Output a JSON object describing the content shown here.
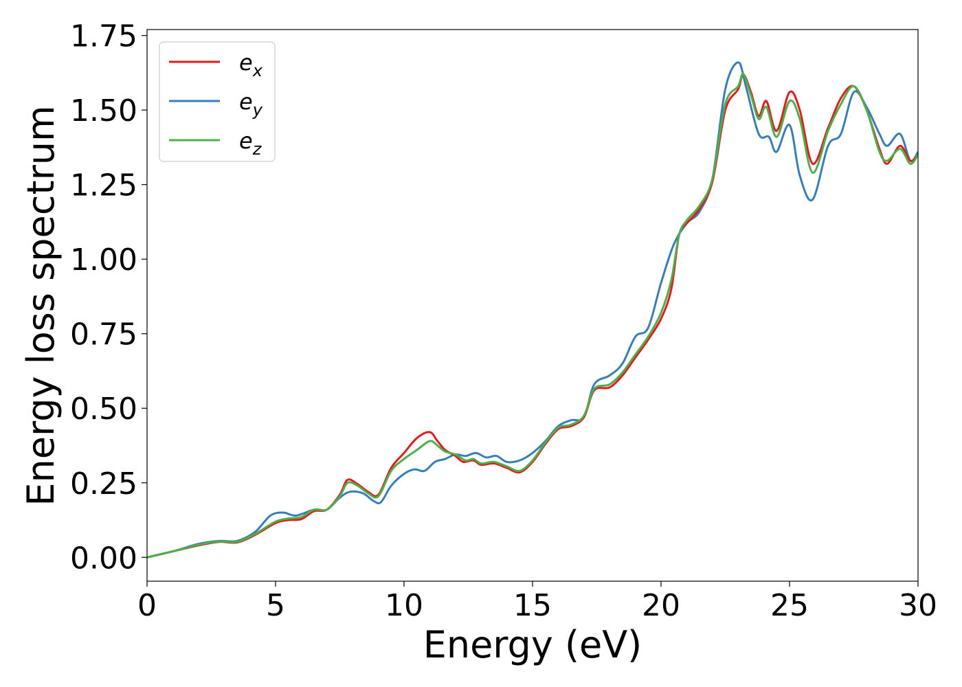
{
  "chart_data": {
    "type": "line",
    "xlabel": "Energy (eV)",
    "ylabel": "Energy loss spectrum",
    "xlim": [
      0,
      30
    ],
    "ylim": [
      -0.08,
      1.77
    ],
    "xticks": [
      0,
      5,
      10,
      15,
      20,
      25,
      30
    ],
    "xtick_labels": [
      "0",
      "5",
      "10",
      "15",
      "20",
      "25",
      "30"
    ],
    "yticks": [
      0.0,
      0.25,
      0.5,
      0.75,
      1.0,
      1.25,
      1.5,
      1.75
    ],
    "ytick_labels": [
      "0.00",
      "0.25",
      "0.50",
      "0.75",
      "1.00",
      "1.25",
      "1.50",
      "1.75"
    ],
    "grid": false,
    "legend_position": "top-left",
    "series": [
      {
        "name": "e",
        "subscript": "x",
        "color": "#e41a1c",
        "points": [
          [
            0,
            0
          ],
          [
            1,
            0.02
          ],
          [
            2,
            0.04
          ],
          [
            2.8,
            0.052
          ],
          [
            3.5,
            0.05
          ],
          [
            4.2,
            0.075
          ],
          [
            5,
            0.115
          ],
          [
            5.5,
            0.125
          ],
          [
            6,
            0.128
          ],
          [
            6.5,
            0.155
          ],
          [
            7,
            0.16
          ],
          [
            7.5,
            0.21
          ],
          [
            7.8,
            0.26
          ],
          [
            8.2,
            0.245
          ],
          [
            8.6,
            0.22
          ],
          [
            9,
            0.21
          ],
          [
            9.5,
            0.3
          ],
          [
            10,
            0.35
          ],
          [
            10.5,
            0.4
          ],
          [
            11,
            0.42
          ],
          [
            11.3,
            0.39
          ],
          [
            11.6,
            0.36
          ],
          [
            12,
            0.34
          ],
          [
            12.3,
            0.32
          ],
          [
            12.7,
            0.325
          ],
          [
            13,
            0.31
          ],
          [
            13.5,
            0.315
          ],
          [
            14,
            0.3
          ],
          [
            14.5,
            0.285
          ],
          [
            15,
            0.32
          ],
          [
            15.5,
            0.38
          ],
          [
            16,
            0.43
          ],
          [
            16.5,
            0.44
          ],
          [
            17,
            0.47
          ],
          [
            17.4,
            0.56
          ],
          [
            18,
            0.57
          ],
          [
            18.5,
            0.61
          ],
          [
            19,
            0.67
          ],
          [
            19.5,
            0.73
          ],
          [
            20,
            0.8
          ],
          [
            20.4,
            0.9
          ],
          [
            20.7,
            1.08
          ],
          [
            21,
            1.12
          ],
          [
            21.5,
            1.17
          ],
          [
            22,
            1.26
          ],
          [
            22.5,
            1.5
          ],
          [
            23,
            1.57
          ],
          [
            23.2,
            1.62
          ],
          [
            23.5,
            1.56
          ],
          [
            23.8,
            1.48
          ],
          [
            24.1,
            1.53
          ],
          [
            24.5,
            1.43
          ],
          [
            25,
            1.56
          ],
          [
            25.4,
            1.5
          ],
          [
            25.9,
            1.32
          ],
          [
            26.5,
            1.44
          ],
          [
            27,
            1.54
          ],
          [
            27.5,
            1.58
          ],
          [
            28,
            1.5
          ],
          [
            28.5,
            1.37
          ],
          [
            28.8,
            1.32
          ],
          [
            29.3,
            1.38
          ],
          [
            29.7,
            1.33
          ],
          [
            30,
            1.35
          ]
        ]
      },
      {
        "name": "e",
        "subscript": "y",
        "color": "#377eb8",
        "points": [
          [
            0,
            0
          ],
          [
            1,
            0.02
          ],
          [
            2,
            0.045
          ],
          [
            2.8,
            0.055
          ],
          [
            3.5,
            0.055
          ],
          [
            4.2,
            0.085
          ],
          [
            4.8,
            0.14
          ],
          [
            5.3,
            0.15
          ],
          [
            5.8,
            0.14
          ],
          [
            6.5,
            0.16
          ],
          [
            7,
            0.16
          ],
          [
            7.5,
            0.2
          ],
          [
            7.9,
            0.22
          ],
          [
            8.4,
            0.215
          ],
          [
            8.8,
            0.19
          ],
          [
            9.1,
            0.185
          ],
          [
            9.5,
            0.24
          ],
          [
            10,
            0.28
          ],
          [
            10.4,
            0.295
          ],
          [
            10.8,
            0.29
          ],
          [
            11.2,
            0.32
          ],
          [
            11.6,
            0.33
          ],
          [
            12,
            0.345
          ],
          [
            12.4,
            0.34
          ],
          [
            12.8,
            0.35
          ],
          [
            13.2,
            0.335
          ],
          [
            13.6,
            0.34
          ],
          [
            14,
            0.32
          ],
          [
            14.5,
            0.325
          ],
          [
            15,
            0.35
          ],
          [
            15.5,
            0.39
          ],
          [
            16,
            0.44
          ],
          [
            16.5,
            0.46
          ],
          [
            17,
            0.47
          ],
          [
            17.4,
            0.58
          ],
          [
            18,
            0.61
          ],
          [
            18.5,
            0.65
          ],
          [
            19,
            0.74
          ],
          [
            19.5,
            0.77
          ],
          [
            20,
            0.92
          ],
          [
            20.5,
            1.05
          ],
          [
            21,
            1.12
          ],
          [
            21.5,
            1.16
          ],
          [
            22,
            1.27
          ],
          [
            22.5,
            1.57
          ],
          [
            23,
            1.66
          ],
          [
            23.3,
            1.58
          ],
          [
            23.8,
            1.42
          ],
          [
            24.2,
            1.41
          ],
          [
            24.5,
            1.36
          ],
          [
            25,
            1.45
          ],
          [
            25.4,
            1.28
          ],
          [
            25.9,
            1.2
          ],
          [
            26.5,
            1.38
          ],
          [
            27,
            1.42
          ],
          [
            27.5,
            1.56
          ],
          [
            28,
            1.51
          ],
          [
            28.5,
            1.42
          ],
          [
            28.8,
            1.38
          ],
          [
            29.3,
            1.42
          ],
          [
            29.7,
            1.33
          ],
          [
            30,
            1.36
          ]
        ]
      },
      {
        "name": "e",
        "subscript": "z",
        "color": "#4daf4a",
        "points": [
          [
            0,
            0
          ],
          [
            1,
            0.02
          ],
          [
            2,
            0.042
          ],
          [
            2.8,
            0.053
          ],
          [
            3.5,
            0.052
          ],
          [
            4.2,
            0.078
          ],
          [
            5,
            0.12
          ],
          [
            5.5,
            0.13
          ],
          [
            6,
            0.135
          ],
          [
            6.5,
            0.16
          ],
          [
            7,
            0.16
          ],
          [
            7.5,
            0.205
          ],
          [
            7.8,
            0.25
          ],
          [
            8.2,
            0.24
          ],
          [
            8.6,
            0.215
          ],
          [
            9,
            0.205
          ],
          [
            9.5,
            0.29
          ],
          [
            10,
            0.33
          ],
          [
            10.5,
            0.36
          ],
          [
            11,
            0.39
          ],
          [
            11.3,
            0.375
          ],
          [
            11.6,
            0.355
          ],
          [
            12,
            0.345
          ],
          [
            12.4,
            0.325
          ],
          [
            12.7,
            0.33
          ],
          [
            13,
            0.315
          ],
          [
            13.5,
            0.32
          ],
          [
            14,
            0.305
          ],
          [
            14.5,
            0.29
          ],
          [
            15,
            0.325
          ],
          [
            15.5,
            0.385
          ],
          [
            16,
            0.435
          ],
          [
            16.5,
            0.445
          ],
          [
            17,
            0.475
          ],
          [
            17.4,
            0.565
          ],
          [
            18,
            0.58
          ],
          [
            18.5,
            0.62
          ],
          [
            19,
            0.68
          ],
          [
            19.5,
            0.74
          ],
          [
            20,
            0.82
          ],
          [
            20.4,
            0.93
          ],
          [
            20.7,
            1.08
          ],
          [
            21,
            1.13
          ],
          [
            21.5,
            1.18
          ],
          [
            22,
            1.27
          ],
          [
            22.5,
            1.52
          ],
          [
            23,
            1.58
          ],
          [
            23.2,
            1.62
          ],
          [
            23.5,
            1.55
          ],
          [
            23.8,
            1.47
          ],
          [
            24.1,
            1.51
          ],
          [
            24.5,
            1.41
          ],
          [
            25,
            1.53
          ],
          [
            25.4,
            1.47
          ],
          [
            25.9,
            1.29
          ],
          [
            26.5,
            1.43
          ],
          [
            27,
            1.52
          ],
          [
            27.5,
            1.58
          ],
          [
            28,
            1.5
          ],
          [
            28.5,
            1.36
          ],
          [
            28.8,
            1.33
          ],
          [
            29.3,
            1.37
          ],
          [
            29.7,
            1.32
          ],
          [
            30,
            1.35
          ]
        ]
      }
    ]
  }
}
